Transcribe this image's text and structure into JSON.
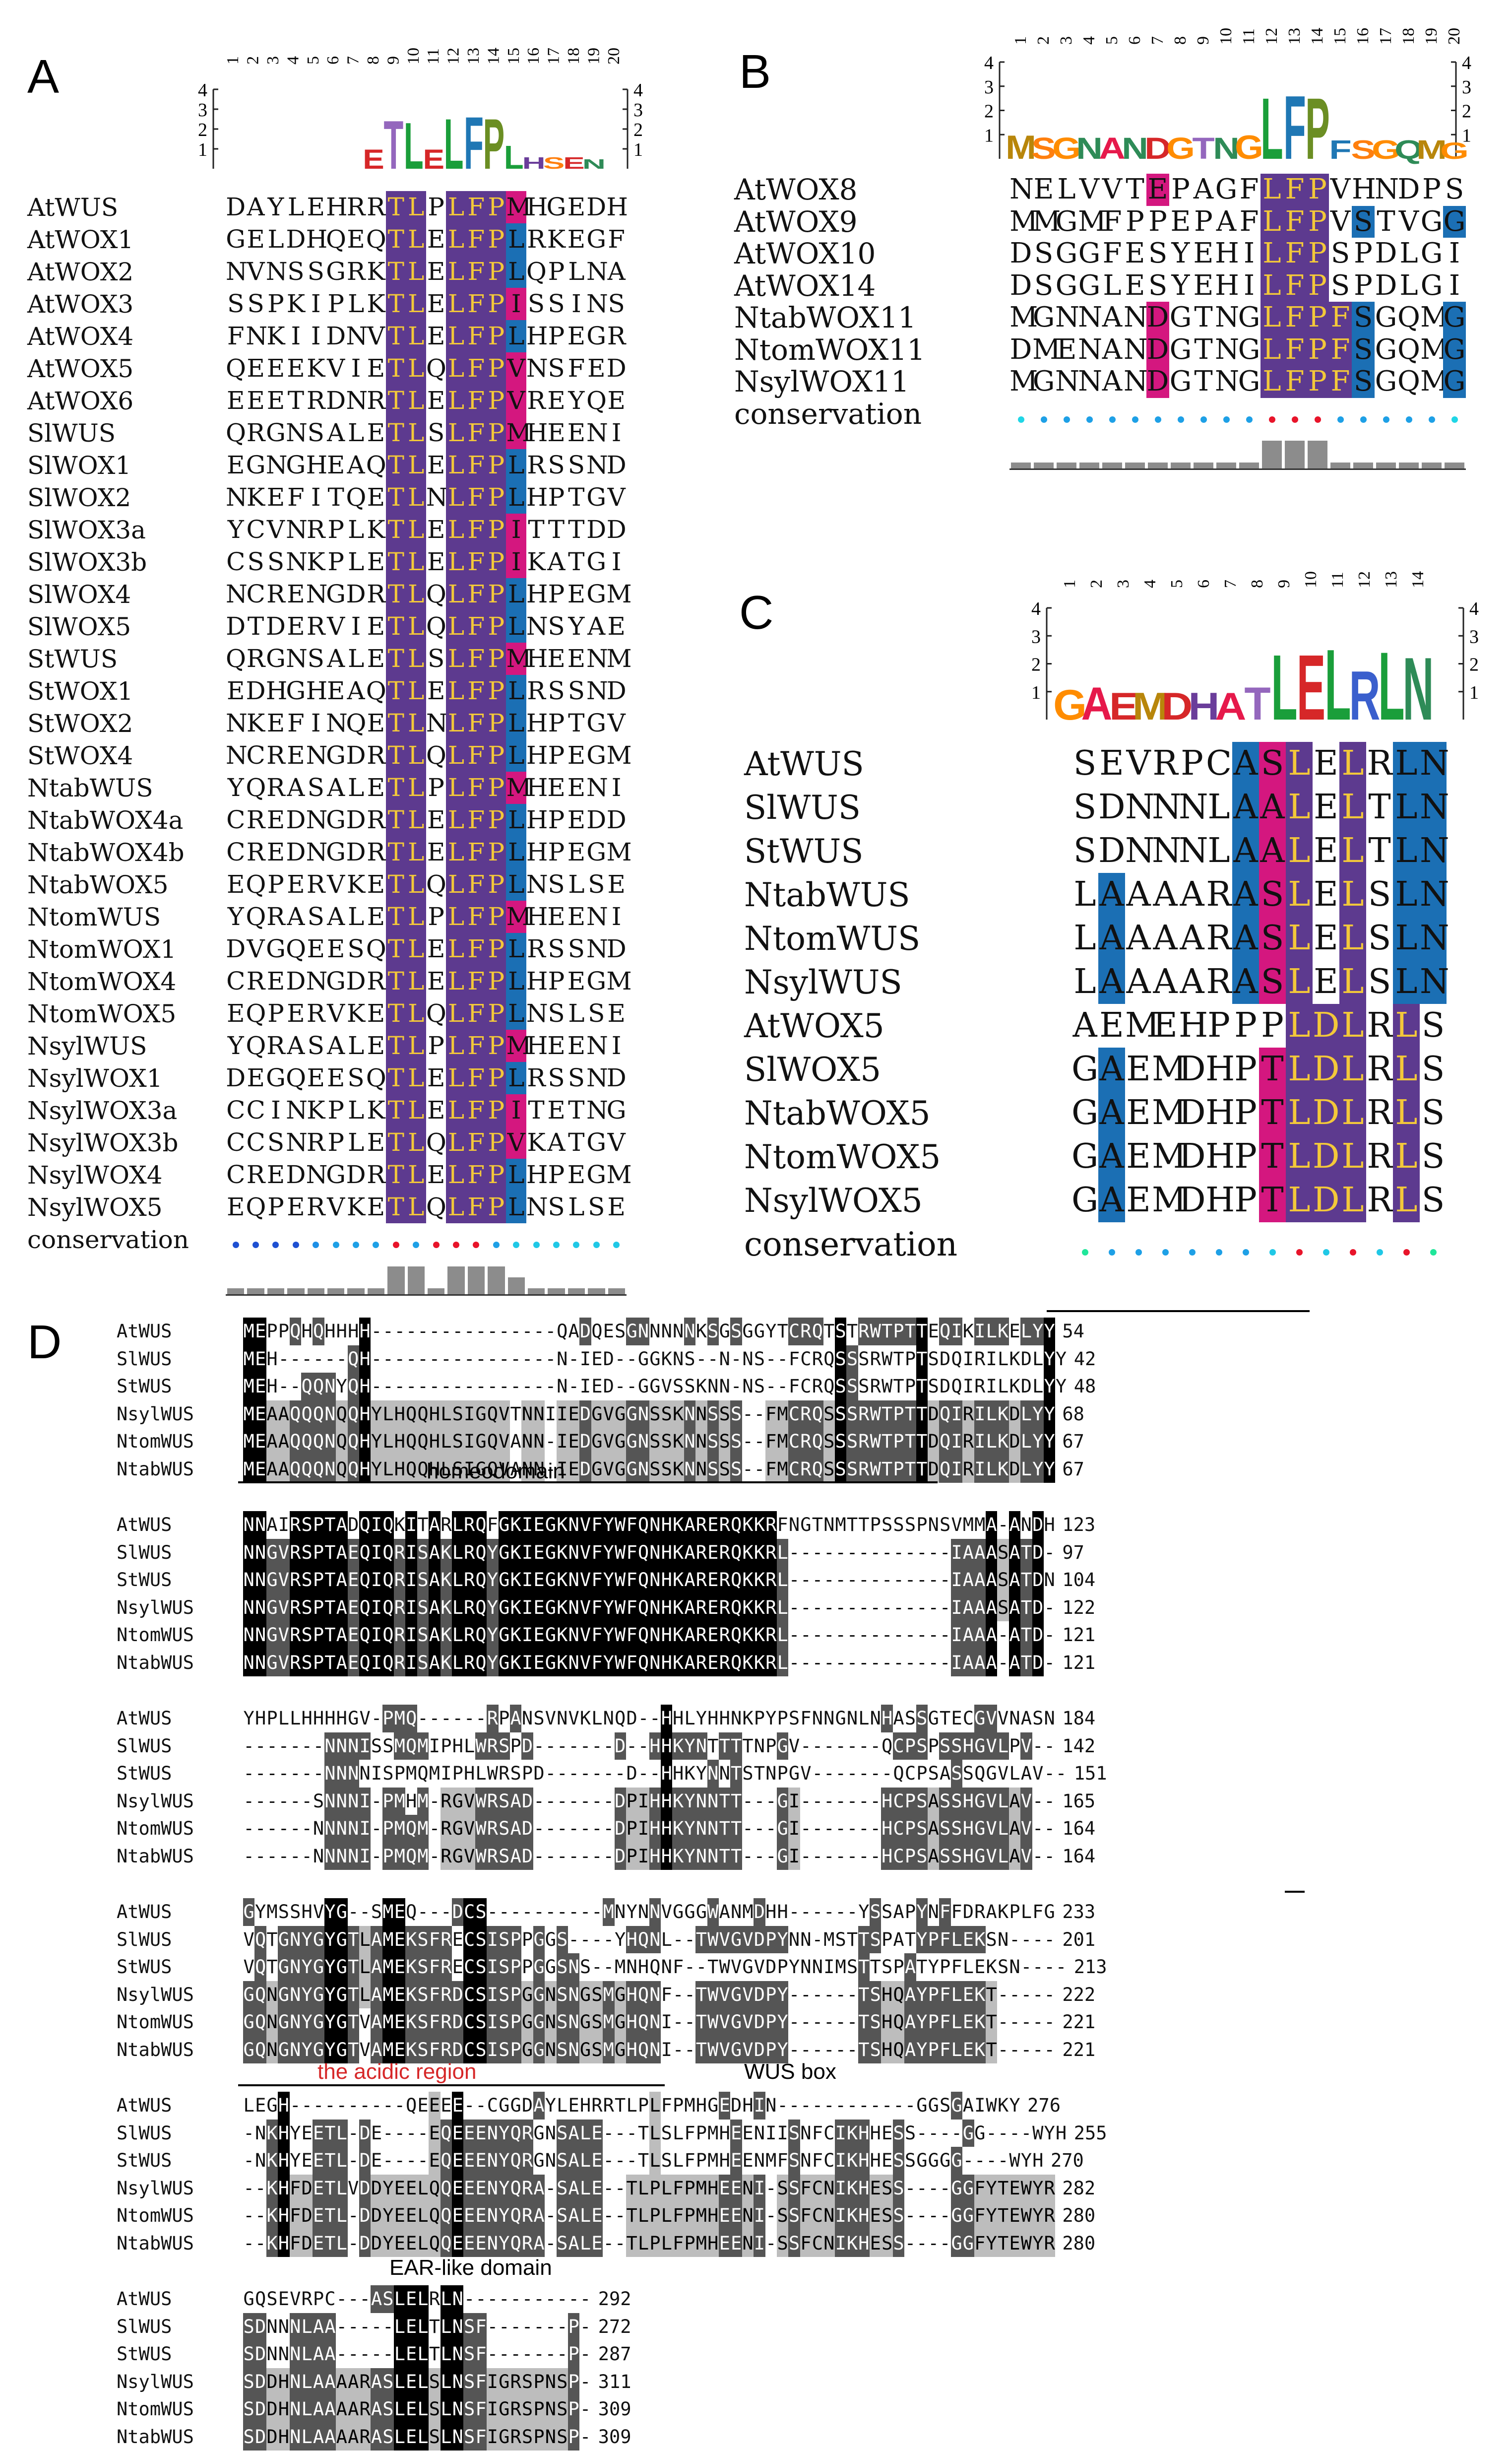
{
  "panels": [
    "A",
    "B",
    "C",
    "D"
  ],
  "colors": {
    "purple": "#5d3a8f",
    "magenta": "#d4177f",
    "blue": "#1b6fb4",
    "dark": "#000000",
    "grey": "#555555",
    "light": "#bdbdbd",
    "yellow": "#f3c83a"
  },
  "panelA": {
    "logo_positions": [
      "1",
      "2",
      "3",
      "4",
      "5",
      "6",
      "7",
      "8",
      "9",
      "10",
      "11",
      "12",
      "13",
      "14",
      "15",
      "16",
      "17",
      "18",
      "19",
      "20"
    ],
    "logo_big": [
      "",
      "",
      "",
      "",
      "",
      "",
      "",
      "E",
      "T",
      "L",
      "E",
      "L",
      "F",
      "P",
      "L",
      "H",
      "S",
      "E",
      "N",
      ""
    ],
    "logo_y_ticks": [
      "4",
      "3",
      "2",
      "1"
    ],
    "conservation_label": "conservation",
    "rows": [
      {
        "name": "AtWUS",
        "seq": "DAYLEHRRTLPLFPMHGEDH"
      },
      {
        "name": "AtWOX1",
        "seq": "GELDHQEQTLELFPLRKEGF"
      },
      {
        "name": "AtWOX2",
        "seq": "NVNSSGRKTLELFPLQPLNA"
      },
      {
        "name": "AtWOX3",
        "seq": "SSPKIPLKTLELFPISSINS"
      },
      {
        "name": "AtWOX4",
        "seq": "FNKIIDNVTLELFPLHPEGR"
      },
      {
        "name": "AtWOX5",
        "seq": "QEEEKVIETLQLFPVNSFED"
      },
      {
        "name": "AtWOX6",
        "seq": "EEETRDNRTLELFPVREYQE"
      },
      {
        "name": "SlWUS",
        "seq": "QRGNSALETLSLFPMHEENI"
      },
      {
        "name": "SlWOX1",
        "seq": "EGNGHEAQTLELFPLRSSND"
      },
      {
        "name": "SlWOX2",
        "seq": "NKEFITQETLNLFPLHPTGV"
      },
      {
        "name": "SlWOX3a",
        "seq": "YCVNRPLKTLELFPITTTDD"
      },
      {
        "name": "SlWOX3b",
        "seq": "CSSNKPLETLELFPIKATGI"
      },
      {
        "name": "SlWOX4",
        "seq": "NCRENGDRTLQLFPLHPEGM"
      },
      {
        "name": "SlWOX5",
        "seq": "DTDERVIETLQLFPLNSYAE"
      },
      {
        "name": "StWUS",
        "seq": "QRGNSALETLSLFPMHEENM"
      },
      {
        "name": "StWOX1",
        "seq": "EDHGHEAQTLELFPLRSSND"
      },
      {
        "name": "StWOX2",
        "seq": "NKEFINQETLNLFPLHPTGV"
      },
      {
        "name": "StWOX4",
        "seq": "NCRENGDRTLQLFPLHPEGM"
      },
      {
        "name": "NtabWUS",
        "seq": "YQRASALETLPLFPMHEENI"
      },
      {
        "name": "NtabWOX4a",
        "seq": "CREDNGDRTLELFPLHPEDD"
      },
      {
        "name": "NtabWOX4b",
        "seq": "CREDNGDRTLELFPLHPEGM"
      },
      {
        "name": "NtabWOX5",
        "seq": "EQPERVKETLQLFPLNSLSE"
      },
      {
        "name": "NtomWUS",
        "seq": "YQRASALETLPLFPMHEENI"
      },
      {
        "name": "NtomWOX1",
        "seq": "DVGQEESQTLELFPLRSSND"
      },
      {
        "name": "NtomWOX4",
        "seq": "CREDNGDRTLELFPLHPEGM"
      },
      {
        "name": "NtomWOX5",
        "seq": "EQPERVKETLQLFPLNSLSE"
      },
      {
        "name": "NsylWUS",
        "seq": "YQRASALETLPLFPMHEENI"
      },
      {
        "name": "NsylWOX1",
        "seq": "DEGQEESQTLELFPLRSSND"
      },
      {
        "name": "NsylWOX3a",
        "seq": "CCINKPLKTLELFPITETNG"
      },
      {
        "name": "NsylWOX3b",
        "seq": "CCSNRPLETLQLFPVKATGV"
      },
      {
        "name": "NsylWOX4",
        "seq": "CREDNGDRTLELFPLHPEGM"
      },
      {
        "name": "NsylWOX5",
        "seq": "EQPERVKETLQLFPLNSLSE"
      }
    ],
    "dot_colors": [
      "#1e50d2",
      "#1e50d2",
      "#1e50d2",
      "#1e50d2",
      "#1e90e6",
      "#1ea0e6",
      "#1ea0e6",
      "#1ea0e6",
      "#e8142a",
      "#1ea0e6",
      "#e8142a",
      "#e8142a",
      "#e8142a",
      "#1ea0e6",
      "#20c8e6",
      "#20c8e6",
      "#20c8e6",
      "#20c8e6",
      "#20c8e6",
      "#20c8e6"
    ],
    "bar_scores": [
      1,
      1,
      1,
      1,
      1,
      1,
      1,
      1,
      3,
      3,
      1,
      3,
      3,
      3,
      2,
      1,
      1,
      1,
      1,
      1
    ]
  },
  "panelB": {
    "logo_positions": [
      "1",
      "2",
      "3",
      "4",
      "5",
      "6",
      "7",
      "8",
      "9",
      "10",
      "11",
      "12",
      "13",
      "14",
      "15",
      "16",
      "17",
      "18",
      "19",
      "20"
    ],
    "logo_big": [
      "M",
      "S",
      "G",
      "N",
      "A",
      "N",
      "D",
      "G",
      "T",
      "N",
      "G",
      "L",
      "F",
      "P",
      "F",
      "S",
      "G",
      "Q",
      "M",
      "G"
    ],
    "logo_y_ticks": [
      "4",
      "3",
      "2",
      "1"
    ],
    "conservation_label": "conservation",
    "rows": [
      {
        "name": "AtWOX8",
        "seq": "NELVVTEPAGFLFPVHNDPS"
      },
      {
        "name": "AtWOX9",
        "seq": "MMGMFPPEPAFLFPVSTVGG"
      },
      {
        "name": "AtWOX10",
        "seq": "DSGGFESYEHILFPSPDLGI"
      },
      {
        "name": "AtWOX14",
        "seq": "DSGGLESYEHILFPSPDLGI"
      },
      {
        "name": "NtabWOX11",
        "seq": "MGNNANDGTNGLFPFSGQMG"
      },
      {
        "name": "NtomWOX11",
        "seq": "DMENANDGTNGLFPFSGQMG"
      },
      {
        "name": "NsylWOX11",
        "seq": "MGNNANDGTNGLFPFSGQMG"
      }
    ],
    "dot_colors": [
      "#20d6e6",
      "#1ea0e6",
      "#1ea0e6",
      "#1ea0e6",
      "#1ea0e6",
      "#1ea0e6",
      "#1ea0e6",
      "#1ea0e6",
      "#1ea0e6",
      "#1ea0e6",
      "#1ea0e6",
      "#e8142a",
      "#e8142a",
      "#e8142a",
      "#1ea0e6",
      "#1ea0e6",
      "#1ea0e6",
      "#1ea0e6",
      "#1ea0e6",
      "#20d6e6"
    ],
    "bar_scores": [
      1,
      1,
      1,
      1,
      1,
      1,
      1,
      1,
      1,
      1,
      1,
      3,
      3,
      3,
      1,
      1,
      1,
      1,
      1,
      1
    ]
  },
  "panelC": {
    "logo_positions": [
      "1",
      "2",
      "3",
      "4",
      "5",
      "6",
      "7",
      "8",
      "9",
      "10",
      "11",
      "12",
      "13",
      "14"
    ],
    "logo_big": [
      "G",
      "A",
      "E",
      "M",
      "D",
      "H",
      "A",
      "T",
      "L",
      "E",
      "L",
      "R",
      "L",
      "N"
    ],
    "logo_y_ticks": [
      "4",
      "3",
      "2",
      "1"
    ],
    "conservation_label": "conservation",
    "rows": [
      {
        "name": "AtWUS",
        "seq": "SEVRPCASLELRLN"
      },
      {
        "name": "SlWUS",
        "seq": "SDNNNLAALELTLN"
      },
      {
        "name": "StWUS",
        "seq": "SDNNNLAALELTLN"
      },
      {
        "name": "NtabWUS",
        "seq": "LAAAARASLELSLN"
      },
      {
        "name": "NtomWUS",
        "seq": "LAAAARASLELSLN"
      },
      {
        "name": "NsylWUS",
        "seq": "LAAAARASLELSLN"
      },
      {
        "name": "AtWOX5",
        "seq": "AEMEHPPPLDLRLS"
      },
      {
        "name": "SlWOX5",
        "seq": "GAEMDHPTLDLRLS"
      },
      {
        "name": "NtabWOX5",
        "seq": "GAEMDHPTLDLRLS"
      },
      {
        "name": "NtomWOX5",
        "seq": "GAEMDHPTLDLRLS"
      },
      {
        "name": "NsylWOX5",
        "seq": "GAEMDHPTLDLRLS"
      }
    ],
    "dot_colors": [
      "#20e69a",
      "#1ea0e6",
      "#1ea0e6",
      "#1ea0e6",
      "#1ea0e6",
      "#1ea0e6",
      "#1ea0e6",
      "#20c8e6",
      "#e8142a",
      "#20c8e6",
      "#e8142a",
      "#20c8e6",
      "#e8142a",
      "#20e69a"
    ]
  },
  "panelD": {
    "blocks": [
      {
        "rows": [
          {
            "name": "AtWUS",
            "seq": "MEPPQHQHHHH----------------QADQESGNNNNNKSGSGGYTCRQTSTRWTPTTEQIKILKELYY",
            "num": "54"
          },
          {
            "name": "SlWUS",
            "seq": "MEH------QH----------------N-IED--GGKNS--N-NS--FCRQSSSRWTPTSDQIRILKDLYY",
            "num": "42"
          },
          {
            "name": "StWUS",
            "seq": "MEH--QQNYQH----------------N-IED--GGVSSKNN-NS--FCRQSSSRWTPTSDQIRILKDLYY",
            "num": "48"
          },
          {
            "name": "NsylWUS",
            "seq": "MEAAQQQNQQHYLHQQHLSIGQVTNNIIEDGVGGNSSKNNSSS--FMCRQSSSRWTPTTDQIRILKDLYY",
            "num": "68"
          },
          {
            "name": "NtomWUS",
            "seq": "MEAAQQQNQQHYLHQQHLSIGQVANN-IEDGVGGNSSKNNSSS--FMCRQSSSRWTPTTDQIRILKDLYY",
            "num": "67"
          },
          {
            "name": "NtabWUS",
            "seq": "MEAAQQQNQQHYLHQQHLSIGQVANN-IEDGVGGNSSKNNSSS--FMCRQSSSRWTPTTDQIRILKDLYY",
            "num": "67"
          }
        ]
      },
      {
        "rows": [
          {
            "name": "AtWUS",
            "seq": "NNAIRSPTADQIQKITARLRQFGKIEGKNVFYWFQNHKARERQKKRFNGTNMTTPSSSPNSVMMA-ANDH",
            "num": "123"
          },
          {
            "name": "SlWUS",
            "seq": "NNGVRSPTAEQIQRISAKLRQYGKIEGKNVFYWFQNHKARERQKKRL--------------IAAASATD-",
            "num": "97"
          },
          {
            "name": "StWUS",
            "seq": "NNGVRSPTAEQIQRISAKLRQYGKIEGKNVFYWFQNHKARERQKKRL--------------IAAASATDN",
            "num": "104"
          },
          {
            "name": "NsylWUS",
            "seq": "NNGVRSPTAEQIQRISAKLRQYGKIEGKNVFYWFQNHKARERQKKRL--------------IAAASATD-",
            "num": "122"
          },
          {
            "name": "NtomWUS",
            "seq": "NNGVRSPTAEQIQRISAKLRQYGKIEGKNVFYWFQNHKARERQKKRL--------------IAAA-ATD-",
            "num": "121"
          },
          {
            "name": "NtabWUS",
            "seq": "NNGVRSPTAEQIQRISAKLRQYGKIEGKNVFYWFQNHKARERQKKRL--------------IAAA-ATD-",
            "num": "121"
          }
        ]
      },
      {
        "rows": [
          {
            "name": "AtWUS",
            "seq": "YHPLLHHHHGV-PMQ------RPANSVNVKLNQD--HHLYHHNKPYPSFNNGNLNHASSGTECGVVNASN",
            "num": "184"
          },
          {
            "name": "SlWUS",
            "seq": "-------NNNISSMQMIPHLWRSPD-------D--HHKYNTTTTNPGV-------QCPSPSSHGVLPV--",
            "num": "142"
          },
          {
            "name": "StWUS",
            "seq": "-------NNNNISPMQMIPHLWRSPD-------D--HHKYNNTSTNPGV-------QCPSASSQGVLAV--",
            "num": "151"
          },
          {
            "name": "NsylWUS",
            "seq": "------SNNNI-PMHM-RGVWRSAD-------DPIHHKYNNTT---GI-------HCPSASSHGVLAV--",
            "num": "165"
          },
          {
            "name": "NtomWUS",
            "seq": "------NNNNI-PMQM-RGVWRSAD-------DPIHHKYNNTT---GI-------HCPSASSHGVLAV--",
            "num": "164"
          },
          {
            "name": "NtabWUS",
            "seq": "------NNNNI-PMQM-RGVWRSAD-------DPIHHKYNNTT---GI-------HCPSASSHGVLAV--",
            "num": "164"
          }
        ]
      },
      {
        "rows": [
          {
            "name": "AtWUS",
            "seq": "GYMSSHVYG--SMEQ---DCS----------MNYNNVGGGWANMDHH------YSSAPYNFFDRAKPLFG",
            "num": "233"
          },
          {
            "name": "SlWUS",
            "seq": "VQTGNYGYGTLAMEKSFRECSISPPGGS----YHQNL--TWVGVDPYNN-MSTTSPATYPFLEKSN----",
            "num": "201"
          },
          {
            "name": "StWUS",
            "seq": "VQTGNYGYGTLAMEKSFRECSISPPGGSNS--MNHQNF--TWVGVDPYNNIMSTTSPATYPFLEKSN----",
            "num": "213"
          },
          {
            "name": "NsylWUS",
            "seq": "GQNGNYGYGTLAMEKSFRDCSISPGGNSNGSMGHQNF--TWVGVDPY------TSHQAYPFLEKT-----",
            "num": "222"
          },
          {
            "name": "NtomWUS",
            "seq": "GQNGNYGYGTVAMEKSFRDCSISPGGNSNGSMGHQNI--TWVGVDPY------TSHQAYPFLEKT-----",
            "num": "221"
          },
          {
            "name": "NtabWUS",
            "seq": "GQNGNYGYGTVAMEKSFRDCSISPGGNSNGSMGHQNI--TWVGVDPY------TSHQAYPFLEKT-----",
            "num": "221"
          }
        ]
      },
      {
        "rows": [
          {
            "name": "AtWUS",
            "seq": "LEGH----------QEEEE--CGGDAYLEHRRTLPLFPMHGEDHIN------------GGSGAIWKY",
            "num": "276"
          },
          {
            "name": "SlWUS",
            "seq": "-NKHYEETL-DE----EQEEENYQRGNSALE---TLSLFPMHEENIISNFCIKHHESS----GG----WYH",
            "num": "255"
          },
          {
            "name": "StWUS",
            "seq": "-NKHYEETL-DE----EQEEENYQRGNSALE---TLSLFPMHEENMFSNFCIKHHESSGGGG----WYH",
            "num": "270"
          },
          {
            "name": "NsylWUS",
            "seq": "--KHFDETLVDDYEELQQEEENYQRA-SALE--TLPLFPMHEENI-SSFCNIKHESS----GGFYTEWYR",
            "num": "282"
          },
          {
            "name": "NtomWUS",
            "seq": "--KHFDETL-DDYEELQQEEENYQRA-SALE--TLPLFPMHEENI-SSFCNIKHESS----GGFYTEWYR",
            "num": "280"
          },
          {
            "name": "NtabWUS",
            "seq": "--KHFDETL-DDYEELQQEEENYQRA-SALE--TLPLFPMHEENI-SSFCNIKHESS----GGFYTEWYR",
            "num": "280"
          }
        ]
      },
      {
        "rows": [
          {
            "name": "AtWUS",
            "seq": "GQSEVRPC---ASLELRLN-----------",
            "num": "292"
          },
          {
            "name": "SlWUS",
            "seq": "SDNNNLAA-----LELTLNSF-------P-",
            "num": "272"
          },
          {
            "name": "StWUS",
            "seq": "SDNNNLAA-----LELTLNSF-------P-",
            "num": "287"
          },
          {
            "name": "NsylWUS",
            "seq": "SDDHNLAAAARASLELSLNSFIGRSPNSP-",
            "num": "311"
          },
          {
            "name": "NtomWUS",
            "seq": "SDDHNLAAAARASLELSLNSFIGRSPNSP-",
            "num": "309"
          },
          {
            "name": "NtabWUS",
            "seq": "SDDHNLAAAARASLELSLNSFIGRSPNSP-",
            "num": "309"
          }
        ]
      }
    ],
    "annotations": {
      "homeodomain": "homeodomain",
      "acidic": "the acidic region",
      "wusbox": "WUS box",
      "ear": "EAR-like domain"
    }
  }
}
